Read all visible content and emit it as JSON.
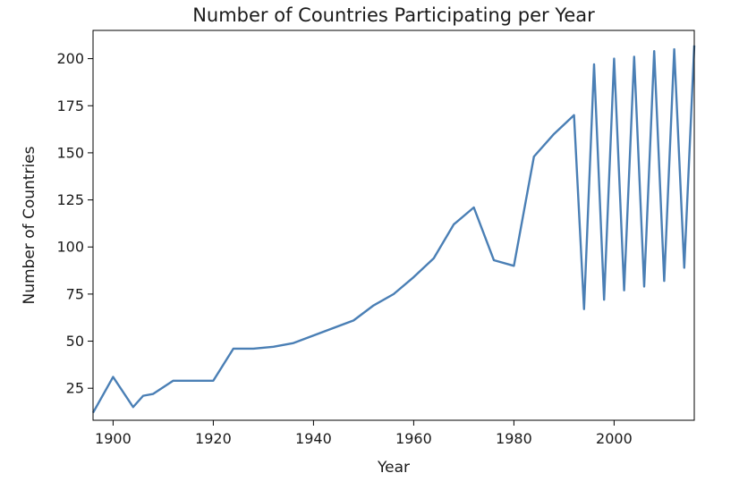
{
  "chart_data": {
    "type": "line",
    "title": "Number of Countries Participating per Year",
    "xlabel": "Year",
    "ylabel": "Number of Countries",
    "xlim": [
      1896,
      2016
    ],
    "ylim": [
      8,
      215
    ],
    "xticks": [
      1900,
      1920,
      1940,
      1960,
      1980,
      2000
    ],
    "yticks": [
      25,
      50,
      75,
      100,
      125,
      150,
      175,
      200
    ],
    "grid": false,
    "legend": "none",
    "series": [
      {
        "color": "#4a7fb5",
        "x": [
          1896,
          1900,
          1904,
          1906,
          1908,
          1912,
          1920,
          1924,
          1928,
          1932,
          1936,
          1948,
          1952,
          1956,
          1960,
          1964,
          1968,
          1972,
          1976,
          1980,
          1984,
          1988,
          1992,
          1994,
          1996,
          1998,
          2000,
          2002,
          2004,
          2006,
          2008,
          2010,
          2012,
          2014,
          2016
        ],
        "y": [
          12,
          31,
          15,
          21,
          22,
          29,
          29,
          46,
          46,
          47,
          49,
          61,
          69,
          75,
          84,
          94,
          112,
          121,
          93,
          90,
          148,
          160,
          170,
          67,
          197,
          72,
          200,
          77,
          201,
          79,
          204,
          82,
          205,
          89,
          207
        ]
      }
    ]
  }
}
